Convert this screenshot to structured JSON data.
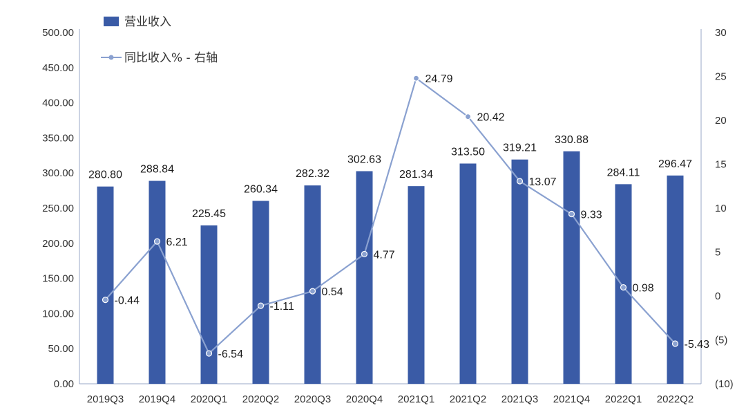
{
  "chart_data": {
    "type": "bar+line",
    "categories": [
      "2019Q3",
      "2019Q4",
      "2020Q1",
      "2020Q2",
      "2020Q3",
      "2020Q4",
      "2021Q1",
      "2021Q2",
      "2021Q3",
      "2021Q4",
      "2022Q1",
      "2022Q2"
    ],
    "series": [
      {
        "name": "营业收入",
        "type": "bar",
        "axis": "left",
        "color": "#3a5ba6",
        "values": [
          280.8,
          288.84,
          225.45,
          260.34,
          282.32,
          302.63,
          281.34,
          313.5,
          319.21,
          330.88,
          284.11,
          296.47
        ],
        "labels": [
          "280.80",
          "288.84",
          "225.45",
          "260.34",
          "282.32",
          "302.63",
          "281.34",
          "313.50",
          "319.21",
          "330.88",
          "284.11",
          "296.47"
        ]
      },
      {
        "name": "同比收入% - 右轴",
        "type": "line",
        "axis": "right",
        "color": "#8aa1d0",
        "values": [
          -0.44,
          6.21,
          -6.54,
          -1.11,
          0.54,
          4.77,
          24.79,
          20.42,
          13.07,
          9.33,
          0.98,
          -5.43
        ],
        "labels": [
          "-0.44",
          "6.21",
          "-6.54",
          "-1.11",
          "0.54",
          "4.77",
          "24.79",
          "20.42",
          "13.07",
          "9.33",
          "0.98",
          "-5.43"
        ]
      }
    ],
    "y_left": {
      "range": [
        0,
        500
      ],
      "ticks": [
        "0.00",
        "50.00",
        "100.00",
        "150.00",
        "200.00",
        "250.00",
        "300.00",
        "350.00",
        "400.00",
        "450.00",
        "500.00"
      ]
    },
    "y_right": {
      "range": [
        -10,
        30
      ],
      "ticks": [
        "(10)",
        "(5)",
        "0",
        "5",
        "10",
        "15",
        "20",
        "25",
        "30"
      ],
      "negative_color": "#c0392b"
    },
    "legend": {
      "placement": "top-left",
      "items": [
        "营业收入",
        "同比收入% - 右轴"
      ]
    },
    "grid": false
  }
}
